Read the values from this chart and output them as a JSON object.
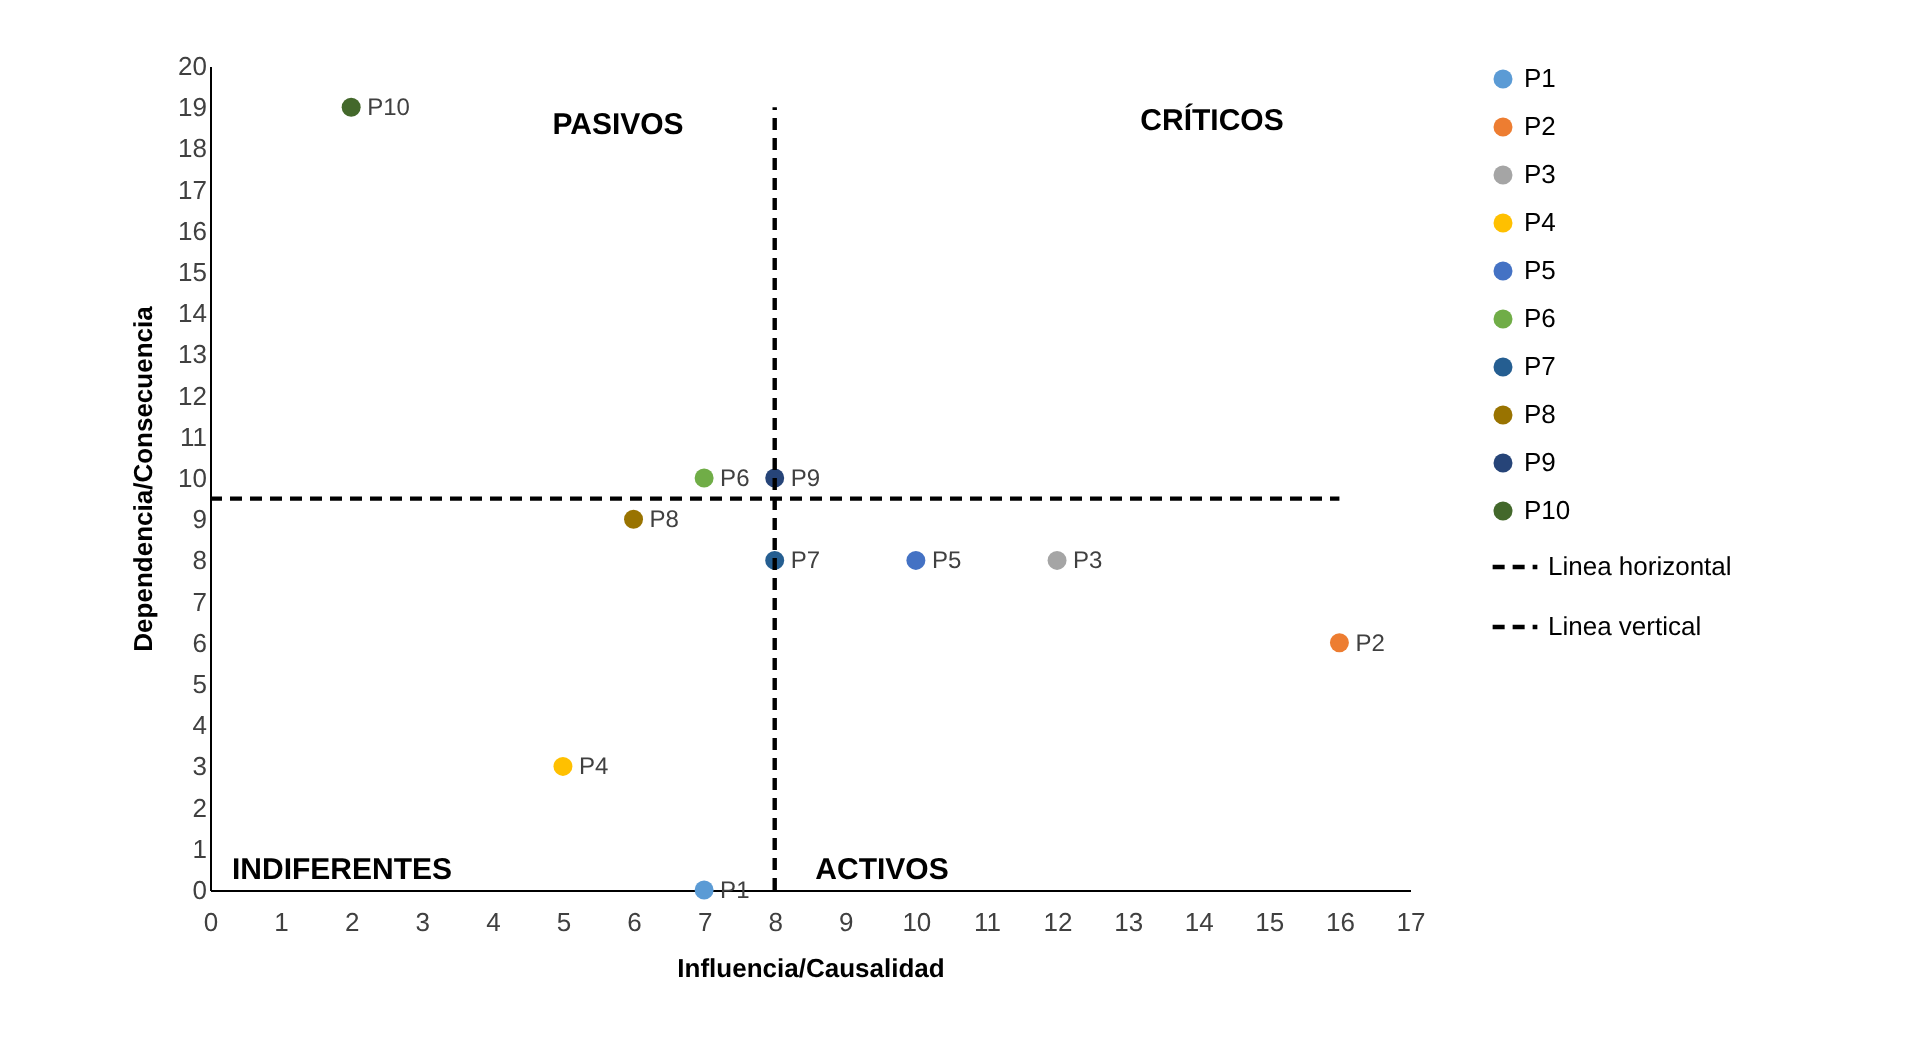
{
  "chart_data": {
    "type": "scatter",
    "xlabel": "Influencia/Causalidad",
    "ylabel": "Dependencia/Consecuencia",
    "xlim": [
      0,
      17
    ],
    "xticks": [
      0,
      1,
      2,
      3,
      4,
      5,
      6,
      7,
      8,
      9,
      10,
      11,
      12,
      13,
      14,
      15,
      16,
      17
    ],
    "ylim": [
      0,
      20
    ],
    "yticks": [
      0,
      1,
      2,
      3,
      4,
      5,
      6,
      7,
      8,
      9,
      10,
      11,
      12,
      13,
      14,
      15,
      16,
      17,
      18,
      19,
      20
    ],
    "grid": false,
    "legend": "right",
    "marker": "circle",
    "series": [
      {
        "name": "P1",
        "color": "#5b9bd5",
        "x": [
          7
        ],
        "values": [
          0
        ]
      },
      {
        "name": "P2",
        "color": "#ed7d31",
        "x": [
          16
        ],
        "values": [
          6
        ]
      },
      {
        "name": "P3",
        "color": "#a5a5a5",
        "x": [
          12
        ],
        "values": [
          8
        ]
      },
      {
        "name": "P4",
        "color": "#ffc000",
        "x": [
          5
        ],
        "values": [
          3
        ]
      },
      {
        "name": "P5",
        "color": "#4472c4",
        "x": [
          10
        ],
        "values": [
          8
        ]
      },
      {
        "name": "P6",
        "color": "#70ad47",
        "x": [
          7
        ],
        "values": [
          10
        ]
      },
      {
        "name": "P7",
        "color": "#255e91",
        "x": [
          8
        ],
        "values": [
          8
        ]
      },
      {
        "name": "P8",
        "color": "#997300",
        "x": [
          6
        ],
        "values": [
          9
        ]
      },
      {
        "name": "P9",
        "color": "#264478",
        "x": [
          8
        ],
        "values": [
          10
        ]
      },
      {
        "name": "P10",
        "color": "#43682b",
        "x": [
          2
        ],
        "values": [
          19
        ]
      },
      {
        "name": "Linea horizontal",
        "type": "line",
        "color": "#000000",
        "line_style": "dashed",
        "marker": "none",
        "x": [
          0,
          16
        ],
        "values": [
          9.5,
          9.5
        ]
      },
      {
        "name": "Linea vertical",
        "type": "line",
        "color": "#000000",
        "line_style": "dashed",
        "marker": "none",
        "x": [
          8,
          8
        ],
        "values": [
          0,
          19
        ]
      }
    ],
    "annotations": [
      "PASIVOS",
      "CRÍTICOS",
      "INDIFERENTES",
      "ACTIVOS"
    ]
  }
}
